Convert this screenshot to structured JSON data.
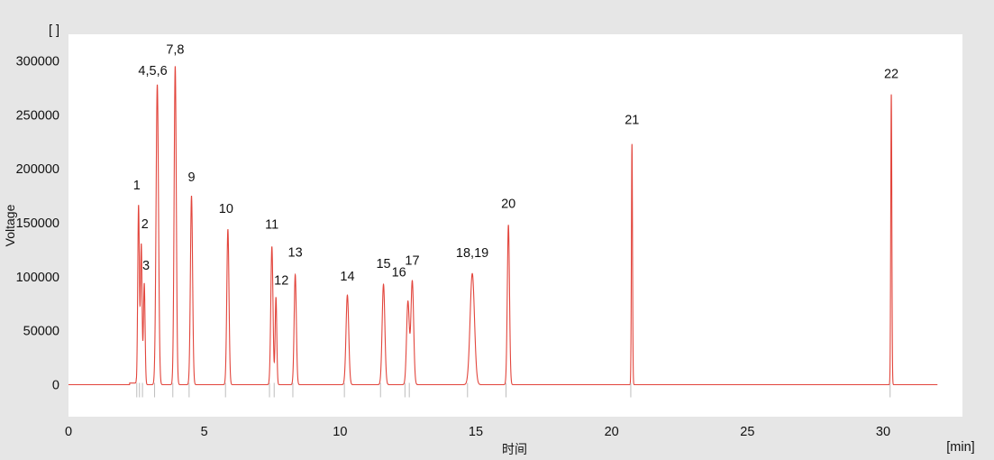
{
  "chart_data": {
    "type": "line",
    "xlabel": "时间",
    "ylabel": "Voltage",
    "x_unit": "[min]",
    "y_unit": "[ ]",
    "xlim": [
      0,
      33
    ],
    "ylim": [
      -30000,
      325000
    ],
    "x_ticks": [
      0,
      5,
      10,
      15,
      20,
      25,
      30
    ],
    "y_ticks": [
      0,
      50000,
      100000,
      150000,
      200000,
      250000,
      300000
    ],
    "grid": false,
    "line_color": "#e2453c",
    "baseline_end": 32,
    "peaks": [
      {
        "label": "1",
        "x": 2.58,
        "y": 166000,
        "w": 0.03
      },
      {
        "label": "2",
        "x": 2.68,
        "y": 130000,
        "w": 0.03
      },
      {
        "label": "3",
        "x": 2.79,
        "y": 94000,
        "w": 0.03
      },
      {
        "label": "4,5,6",
        "x": 3.27,
        "y": 278000,
        "w": 0.045
      },
      {
        "label": "7,8",
        "x": 3.93,
        "y": 295000,
        "w": 0.04
      },
      {
        "label": "9",
        "x": 4.53,
        "y": 175000,
        "w": 0.04
      },
      {
        "label": "10",
        "x": 5.87,
        "y": 144000,
        "w": 0.04
      },
      {
        "label": "11",
        "x": 7.49,
        "y": 128000,
        "w": 0.04
      },
      {
        "label": "12",
        "x": 7.64,
        "y": 81000,
        "w": 0.03
      },
      {
        "label": "13",
        "x": 8.35,
        "y": 102000,
        "w": 0.04
      },
      {
        "label": "14",
        "x": 10.27,
        "y": 83000,
        "w": 0.05
      },
      {
        "label": "15",
        "x": 11.6,
        "y": 93000,
        "w": 0.05
      },
      {
        "label": "16",
        "x": 12.5,
        "y": 77000,
        "w": 0.05
      },
      {
        "label": "17",
        "x": 12.66,
        "y": 96000,
        "w": 0.05
      },
      {
        "label": "18,19",
        "x": 14.87,
        "y": 103000,
        "w": 0.08
      },
      {
        "label": "20",
        "x": 16.2,
        "y": 148000,
        "w": 0.04
      },
      {
        "label": "21",
        "x": 20.75,
        "y": 223000,
        "w": 0.02
      },
      {
        "label": "22",
        "x": 30.3,
        "y": 269000,
        "w": 0.02
      }
    ]
  }
}
